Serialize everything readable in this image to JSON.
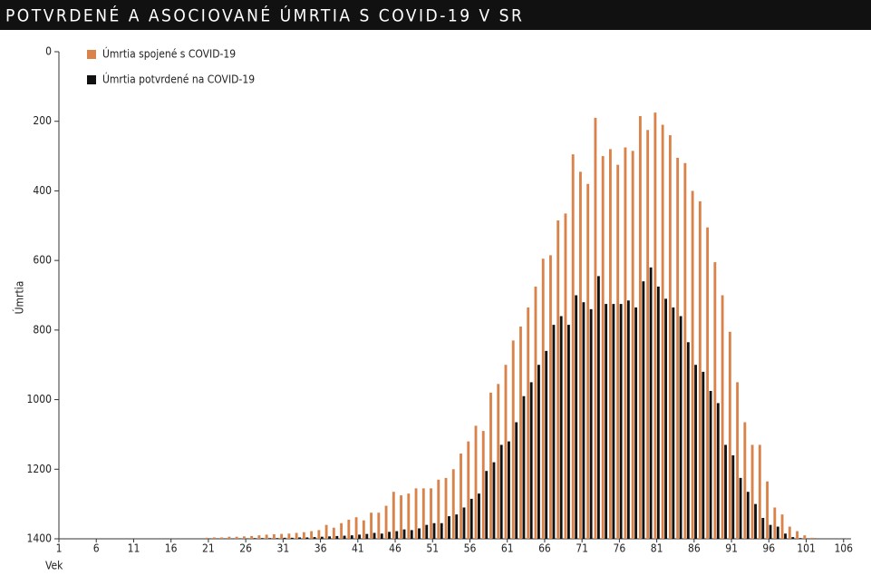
{
  "chart_data": {
    "type": "bar",
    "title": "POTVRDENÉ A ASOCIOVANÉ ÚMRTIA S COVID-19 V SR",
    "x_label": "Vek",
    "y_label": "Úmrtia",
    "x": [
      21,
      22,
      23,
      24,
      25,
      26,
      27,
      28,
      29,
      30,
      31,
      32,
      33,
      34,
      35,
      36,
      37,
      38,
      39,
      40,
      41,
      42,
      43,
      44,
      45,
      46,
      47,
      48,
      49,
      50,
      51,
      52,
      53,
      54,
      55,
      56,
      57,
      58,
      59,
      60,
      61,
      62,
      63,
      64,
      65,
      66,
      67,
      68,
      69,
      70,
      71,
      72,
      73,
      74,
      75,
      76,
      77,
      78,
      79,
      80,
      81,
      82,
      83,
      84,
      85,
      86,
      87,
      88,
      89,
      90,
      91,
      92,
      93,
      94,
      95,
      96,
      97,
      98,
      99,
      100,
      101,
      102
    ],
    "series": [
      {
        "name": "Úmrtia spojené s COVID-19",
        "color": "#d9824a",
        "values": [
          1397,
          1396,
          1396,
          1394,
          1394,
          1393,
          1392,
          1390,
          1388,
          1387,
          1386,
          1385,
          1383,
          1381,
          1378,
          1375,
          1360,
          1368,
          1355,
          1345,
          1338,
          1347,
          1325,
          1325,
          1305,
          1265,
          1275,
          1270,
          1255,
          1255,
          1255,
          1230,
          1225,
          1200,
          1155,
          1120,
          1075,
          1090,
          980,
          955,
          900,
          830,
          790,
          735,
          675,
          595,
          585,
          485,
          465,
          295,
          345,
          380,
          190,
          300,
          280,
          325,
          275,
          285,
          185,
          225,
          175,
          210,
          240,
          305,
          320,
          400,
          430,
          505,
          605,
          700,
          805,
          950,
          1065,
          1130,
          1130,
          1235,
          1310,
          1330,
          1365,
          1378,
          1390,
          1397
        ]
      },
      {
        "name": "Úmrtia potvrdené na COVID-19",
        "color": "#111111",
        "values": [
          1399,
          1399,
          1399,
          1399,
          1399,
          1399,
          1398,
          1398,
          1398,
          1398,
          1397,
          1397,
          1396,
          1396,
          1395,
          1394,
          1393,
          1392,
          1391,
          1390,
          1388,
          1386,
          1383,
          1385,
          1380,
          1378,
          1373,
          1375,
          1370,
          1360,
          1355,
          1355,
          1335,
          1330,
          1310,
          1285,
          1270,
          1205,
          1180,
          1130,
          1120,
          1065,
          990,
          950,
          900,
          860,
          785,
          760,
          785,
          700,
          720,
          740,
          645,
          725,
          725,
          725,
          715,
          735,
          660,
          620,
          675,
          710,
          735,
          760,
          835,
          900,
          920,
          975,
          1010,
          1130,
          1160,
          1225,
          1265,
          1300,
          1340,
          1360,
          1365,
          1385,
          1395,
          1398,
          1399,
          1399
        ]
      }
    ],
    "xlim": [
      1,
      107
    ],
    "xticks": [
      1,
      6,
      11,
      16,
      21,
      26,
      31,
      36,
      41,
      46,
      51,
      56,
      61,
      66,
      71,
      76,
      81,
      86,
      91,
      96,
      101,
      106
    ],
    "ylim": [
      1400,
      0
    ],
    "yticks": [
      0,
      200,
      400,
      600,
      800,
      1000,
      1200,
      1400
    ],
    "legend": "top-left"
  }
}
